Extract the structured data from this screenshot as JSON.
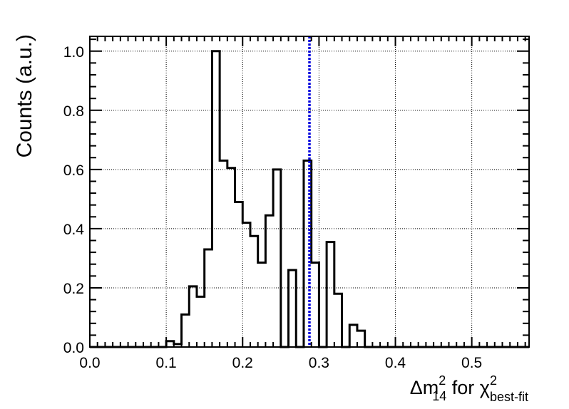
{
  "chart_data": {
    "type": "histogram",
    "xlabel": {
      "prefix": "Δm",
      "sup1": "2",
      "sub1": "14",
      "middle": " for χ",
      "sup2": "2",
      "sub2": "best-fit"
    },
    "ylabel": "Counts (a.u.)",
    "xlim": [
      0.0,
      0.575
    ],
    "ylim": [
      0.0,
      1.05
    ],
    "xticks": [
      "0.0",
      "0.1",
      "0.2",
      "0.3",
      "0.4",
      "0.5"
    ],
    "xtick_values": [
      0.0,
      0.1,
      0.2,
      0.3,
      0.4,
      0.5
    ],
    "yticks": [
      "0.0",
      "0.2",
      "0.4",
      "0.6",
      "0.8",
      "1.0"
    ],
    "ytick_values": [
      0.0,
      0.2,
      0.4,
      0.6,
      0.8,
      1.0
    ],
    "grid": true,
    "bin_width": 0.01,
    "bins": [
      {
        "x": 0.105,
        "y": 0.02
      },
      {
        "x": 0.115,
        "y": 0.01
      },
      {
        "x": 0.125,
        "y": 0.11
      },
      {
        "x": 0.135,
        "y": 0.205
      },
      {
        "x": 0.145,
        "y": 0.17
      },
      {
        "x": 0.155,
        "y": 0.33
      },
      {
        "x": 0.165,
        "y": 1.0
      },
      {
        "x": 0.175,
        "y": 0.63
      },
      {
        "x": 0.185,
        "y": 0.605
      },
      {
        "x": 0.195,
        "y": 0.49
      },
      {
        "x": 0.205,
        "y": 0.42
      },
      {
        "x": 0.215,
        "y": 0.375
      },
      {
        "x": 0.225,
        "y": 0.285
      },
      {
        "x": 0.235,
        "y": 0.445
      },
      {
        "x": 0.245,
        "y": 0.6
      },
      {
        "x": 0.255,
        "y": 0.0
      },
      {
        "x": 0.265,
        "y": 0.26
      },
      {
        "x": 0.275,
        "y": 0.0
      },
      {
        "x": 0.285,
        "y": 0.63
      },
      {
        "x": 0.295,
        "y": 0.285
      },
      {
        "x": 0.305,
        "y": 0.0
      },
      {
        "x": 0.315,
        "y": 0.355
      },
      {
        "x": 0.325,
        "y": 0.18
      },
      {
        "x": 0.335,
        "y": 0.0
      },
      {
        "x": 0.345,
        "y": 0.075
      },
      {
        "x": 0.355,
        "y": 0.055
      }
    ],
    "reference_line": {
      "x": 0.2875,
      "color": "#0000dd",
      "style": "dotted"
    },
    "histogram_color": "#000000"
  }
}
